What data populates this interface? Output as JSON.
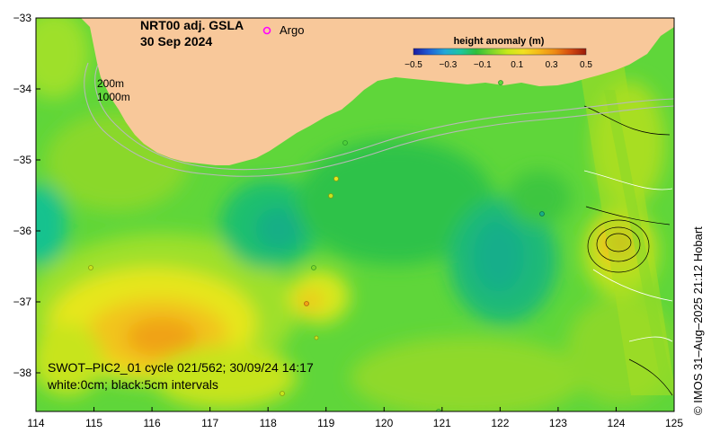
{
  "title_line1": "NRT00 adj. GSLA",
  "title_line2": "30 Sep 2024",
  "legend_argo": "Argo",
  "depth_label_1": "200m",
  "depth_label_2": "1000m",
  "colorbar": {
    "title": "height anomaly (m)",
    "ticks": [
      "−0.5",
      "−0.3",
      "−0.1",
      "0.1",
      "0.3",
      "0.5"
    ],
    "stops": [
      "#1a1aa0",
      "#1f5fd6",
      "#22a8d8",
      "#1cc6a0",
      "#2fbf3a",
      "#7fd62a",
      "#c8e81a",
      "#f2e020",
      "#f5b818",
      "#ee8a14",
      "#d44a10",
      "#9a1a0a"
    ]
  },
  "info_line1": "SWOT–PIC2_01 cycle 021/562; 30/09/24 14:17",
  "info_line2": "white:0cm; black:5cm intervals",
  "copyright": "© IMOS 31–Aug–2025 21:12 Hobart",
  "axes": {
    "x_ticks": [
      "114",
      "115",
      "116",
      "117",
      "118",
      "119",
      "120",
      "121",
      "122",
      "123",
      "124",
      "125"
    ],
    "y_ticks": [
      "−33",
      "−34",
      "−35",
      "−36",
      "−37",
      "−38"
    ]
  },
  "colors": {
    "land": "#f8c89a",
    "argo_marker": "#ff00ff"
  }
}
